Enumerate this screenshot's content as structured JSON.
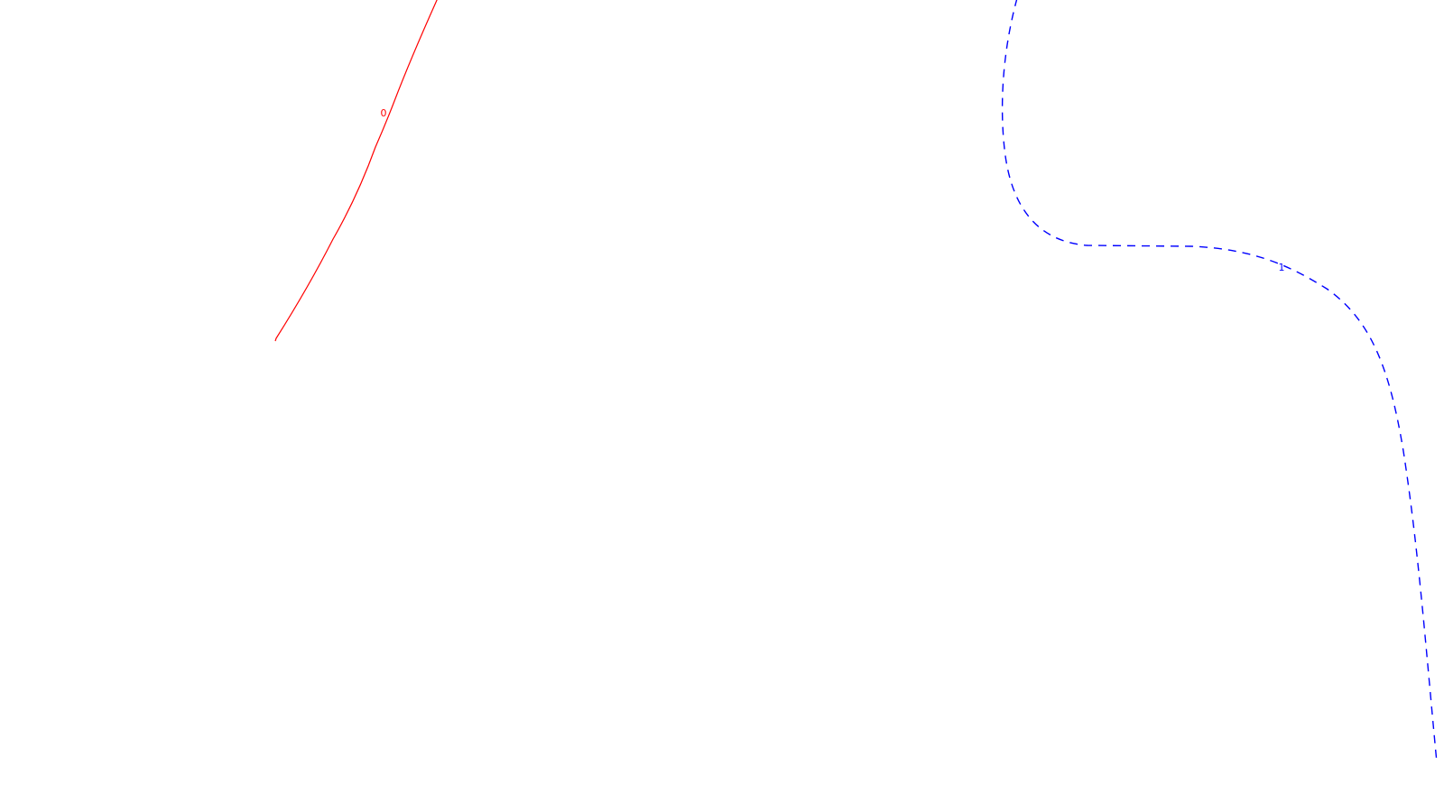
{
  "curves": [
    {
      "id": "red-solid",
      "label": "0",
      "color": "#ff0000",
      "style": "solid"
    },
    {
      "id": "blue-dashed",
      "label": "1",
      "color": "#0000ff",
      "style": "dashed"
    }
  ]
}
